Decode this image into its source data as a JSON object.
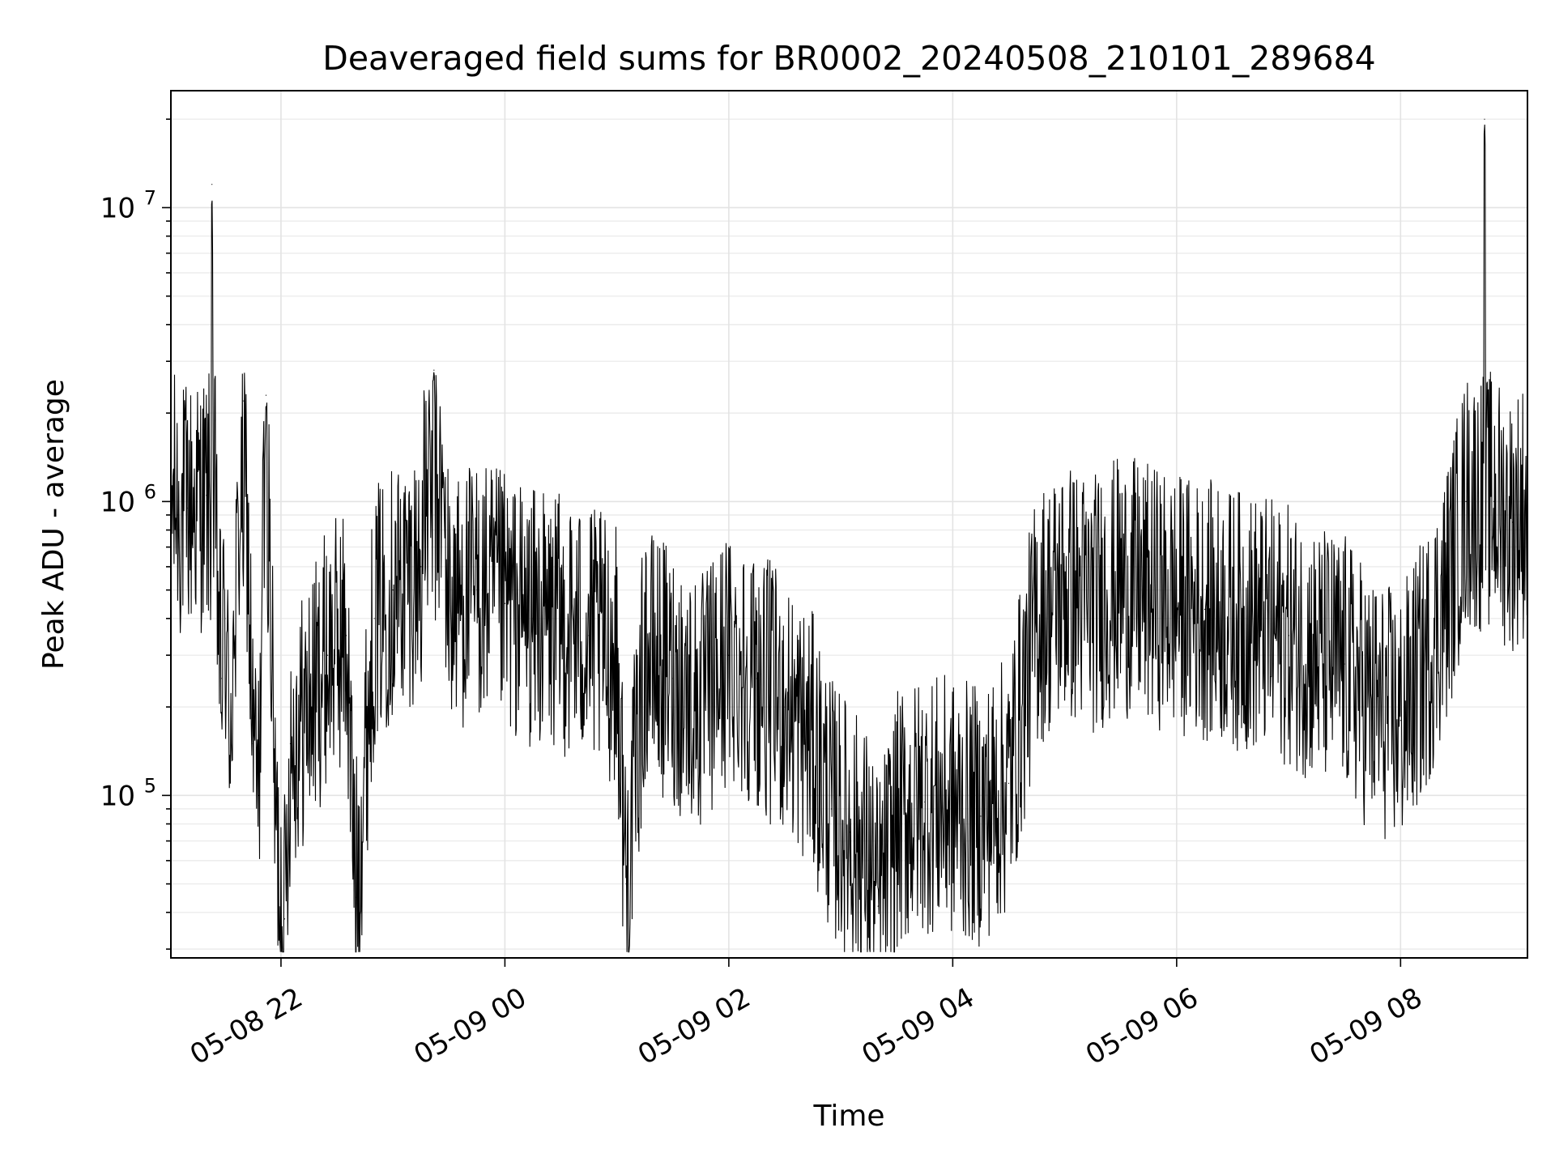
{
  "chart_data": {
    "type": "line",
    "title": "Deaveraged field sums for BR0002_20240508_210101_289684",
    "xlabel": "Time",
    "ylabel": "Peak ADU - average",
    "yscale": "log",
    "xlim": [
      "2024-05-08T21:01",
      "2024-05-09T09:08"
    ],
    "ylim": [
      28000,
      25000000
    ],
    "grid": true,
    "line_color": "#000000",
    "x_ticks": [
      {
        "value": "2024-05-08T22:00",
        "label": "05-08 22"
      },
      {
        "value": "2024-05-09T00:00",
        "label": "05-09 00"
      },
      {
        "value": "2024-05-09T02:00",
        "label": "05-09 02"
      },
      {
        "value": "2024-05-09T04:00",
        "label": "05-09 04"
      },
      {
        "value": "2024-05-09T06:00",
        "label": "05-09 06"
      },
      {
        "value": "2024-05-09T08:00",
        "label": "05-09 08"
      }
    ],
    "y_ticks": [
      {
        "value": 100000,
        "base": "10",
        "exp": "5"
      },
      {
        "value": 1000000,
        "base": "10",
        "exp": "6"
      },
      {
        "value": 10000000,
        "base": "10",
        "exp": "7"
      }
    ],
    "series": [
      {
        "x": [
          "2024-05-08T21:01",
          "2024-05-08T21:05",
          "2024-05-08T21:10",
          "2024-05-08T21:15",
          "2024-05-08T21:20",
          "2024-05-08T21:23",
          "2024-05-08T21:25",
          "2024-05-08T21:28",
          "2024-05-08T21:30",
          "2024-05-08T21:32",
          "2024-05-08T21:35",
          "2024-05-08T21:40",
          "2024-05-08T21:45",
          "2024-05-08T21:48",
          "2024-05-08T21:52",
          "2024-05-08T21:57",
          "2024-05-08T22:02",
          "2024-05-08T22:05",
          "2024-05-08T22:15",
          "2024-05-08T22:25",
          "2024-05-08T22:35",
          "2024-05-08T22:40",
          "2024-05-08T22:50",
          "2024-05-08T23:00",
          "2024-05-08T23:15",
          "2024-05-08T23:22",
          "2024-05-08T23:30",
          "2024-05-08T23:45",
          "2024-05-09T00:00",
          "2024-05-09T00:15",
          "2024-05-09T00:30",
          "2024-05-09T00:45",
          "2024-05-09T01:00",
          "2024-05-09T01:05",
          "2024-05-09T01:15",
          "2024-05-09T01:30",
          "2024-05-09T01:45",
          "2024-05-09T02:00",
          "2024-05-09T02:15",
          "2024-05-09T02:30",
          "2024-05-09T02:45",
          "2024-05-09T02:55",
          "2024-05-09T03:05",
          "2024-05-09T03:15",
          "2024-05-09T03:20",
          "2024-05-09T03:30",
          "2024-05-09T03:45",
          "2024-05-09T04:00",
          "2024-05-09T04:15",
          "2024-05-09T04:30",
          "2024-05-09T04:45",
          "2024-05-09T05:00",
          "2024-05-09T05:15",
          "2024-05-09T05:30",
          "2024-05-09T05:45",
          "2024-05-09T06:00",
          "2024-05-09T06:15",
          "2024-05-09T06:30",
          "2024-05-09T06:45",
          "2024-05-09T07:00",
          "2024-05-09T07:15",
          "2024-05-09T07:30",
          "2024-05-09T07:45",
          "2024-05-09T08:00",
          "2024-05-09T08:15",
          "2024-05-09T08:25",
          "2024-05-09T08:35",
          "2024-05-09T08:40",
          "2024-05-09T08:45",
          "2024-05-09T08:50",
          "2024-05-09T08:55",
          "2024-05-09T09:00",
          "2024-05-09T09:05",
          "2024-05-09T09:08"
        ],
        "y": [
          2100000,
          900000,
          950000,
          1000000,
          1050000,
          12000000,
          700000,
          250000,
          400000,
          180000,
          300000,
          2200000,
          150000,
          100000,
          2300000,
          80000,
          38000,
          150000,
          200000,
          300000,
          350000,
          45000,
          400000,
          500000,
          600000,
          2800000,
          450000,
          500000,
          450000,
          400000,
          380000,
          350000,
          300000,
          50000,
          300000,
          250000,
          200000,
          300000,
          250000,
          200000,
          150000,
          90000,
          75000,
          60000,
          42000,
          80000,
          95000,
          90000,
          85000,
          110000,
          400000,
          500000,
          450000,
          520000,
          480000,
          450000,
          430000,
          400000,
          380000,
          350000,
          300000,
          280000,
          200000,
          180000,
          300000,
          500000,
          1000000,
          1300000,
          20000000,
          1000000,
          900000,
          850000,
          950000,
          900000
        ]
      }
    ]
  }
}
